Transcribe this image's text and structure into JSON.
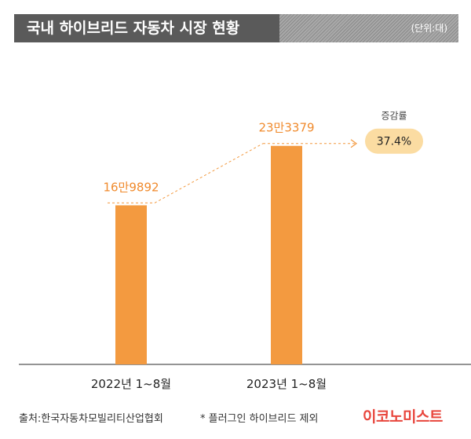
{
  "header": {
    "title": "국내 하이브리드 자동차 시장 현황",
    "unit": "(단위:대)"
  },
  "chart_data": {
    "type": "bar",
    "title": "국내 하이브리드 자동차 시장 현황",
    "categories": [
      "2022년 1~8월",
      "2023년 1~8월"
    ],
    "values": [
      169892,
      233379
    ],
    "value_labels": [
      "16만9892",
      "23만3379"
    ],
    "ylim": [
      0,
      260000
    ],
    "grid": false,
    "growth": {
      "label": "증감률",
      "value": "37.4%"
    },
    "colors": {
      "bar": "#f39a40",
      "label": "#f08a2c",
      "badge": "#fbdca2"
    }
  },
  "footer": {
    "source": "출처:한국자동차모빌리티산업협회",
    "note": "* 플러그인 하이브리드 제외",
    "logo": "이코노미스트"
  }
}
